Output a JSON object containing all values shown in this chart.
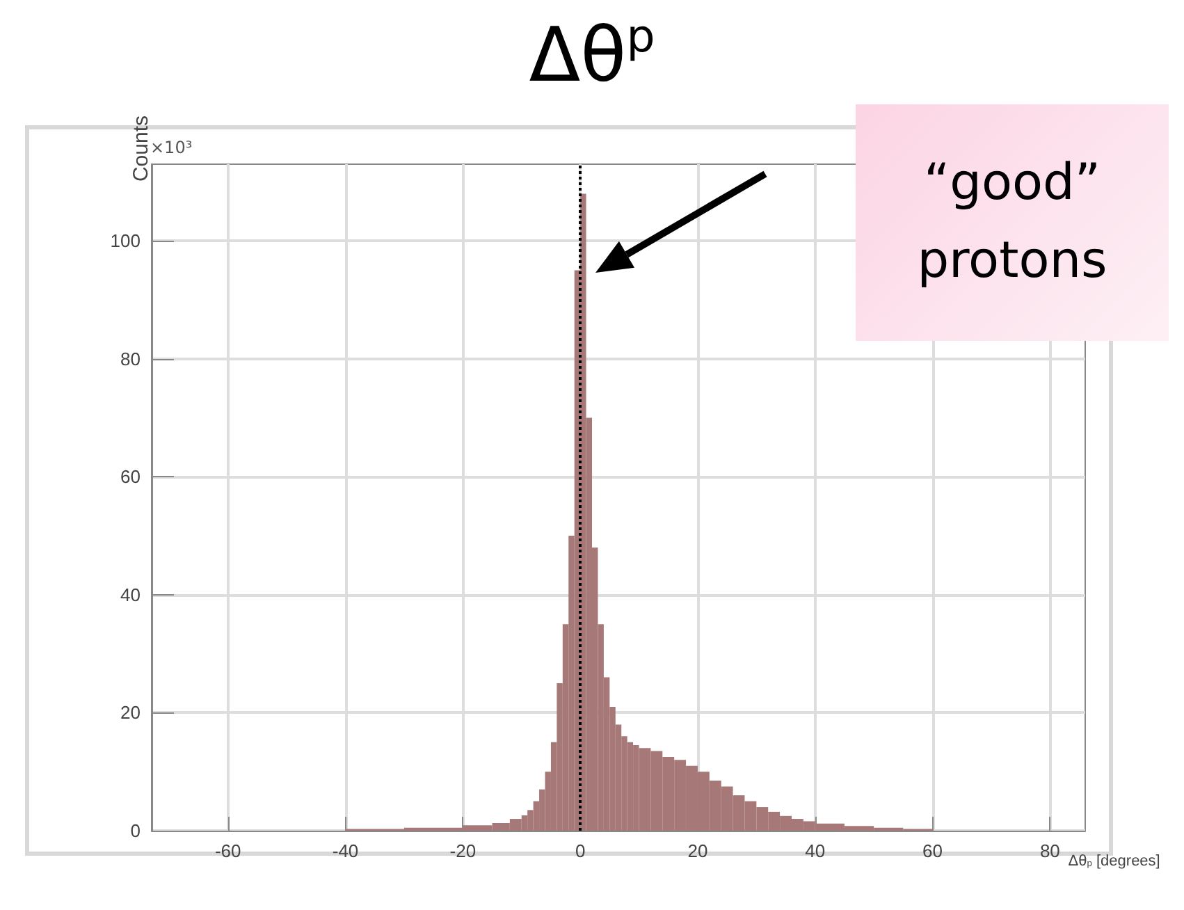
{
  "chart_data": {
    "type": "histogram",
    "title": "Δθ$^{p}$",
    "xlabel": "Δθ$_{p}$ [degrees]",
    "ylabel": "Counts",
    "bins": [
      -40,
      -30,
      -20,
      -15,
      -12,
      -10,
      -9,
      -8,
      -7,
      -6,
      -5,
      -4,
      -3,
      -2,
      -1,
      0,
      1,
      2,
      3,
      4,
      5,
      6,
      7,
      8,
      9,
      10,
      12,
      14,
      16,
      18,
      20,
      22,
      24,
      26,
      28,
      30,
      32,
      34,
      36,
      38,
      40,
      45,
      50,
      55,
      60
    ],
    "values": [
      0.3,
      0.5,
      0.9,
      1.3,
      2,
      2.6,
      3.5,
      5,
      7,
      10,
      15,
      25,
      35,
      50,
      95,
      108,
      70,
      48,
      35,
      26,
      21,
      18,
      16,
      15,
      14.5,
      14,
      13.5,
      12.5,
      12,
      11,
      10,
      8.5,
      7.5,
      6,
      5,
      4,
      3.2,
      2.5,
      2,
      1.6,
      1.2,
      0.8,
      0.5,
      0.3
    ],
    "color": "#a67878",
    "xlim": [
      -73,
      86
    ],
    "xticks": [
      -60,
      -40,
      -20,
      0,
      20,
      40,
      60,
      80
    ],
    "ylim": [
      0,
      113
    ],
    "yticks": [
      0,
      20,
      40,
      60,
      80,
      100
    ],
    "grid": true,
    "ref_lines": [
      {
        "axis": "x",
        "value": 0,
        "color": "#000000",
        "line_style": "dotted"
      }
    ],
    "annotations": [
      "×10³",
      "“good” protons"
    ]
  }
}
